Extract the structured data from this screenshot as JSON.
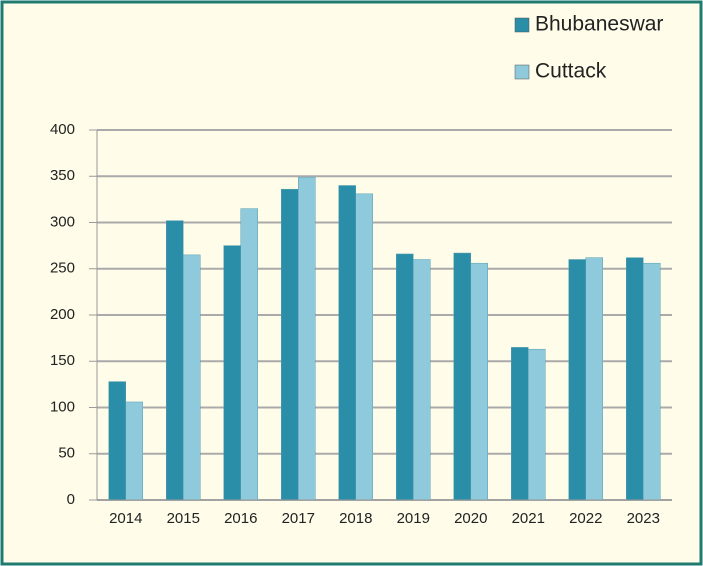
{
  "chart_data": {
    "type": "bar",
    "categories": [
      "2014",
      "2015",
      "2016",
      "2017",
      "2018",
      "2019",
      "2020",
      "2021",
      "2022",
      "2023"
    ],
    "series": [
      {
        "name": "Bhubaneswar",
        "color": "#2a8ea8",
        "values": [
          128,
          302,
          275,
          336,
          340,
          266,
          267,
          165,
          260,
          262
        ]
      },
      {
        "name": "Cuttack",
        "color": "#8fcadc",
        "values": [
          106,
          265,
          315,
          349,
          331,
          260,
          256,
          163,
          262,
          256
        ]
      }
    ],
    "ylim": [
      0,
      400
    ],
    "yticks": [
      0,
      50,
      100,
      150,
      200,
      250,
      300,
      350,
      400
    ],
    "grid": true,
    "legend": "top-right"
  }
}
